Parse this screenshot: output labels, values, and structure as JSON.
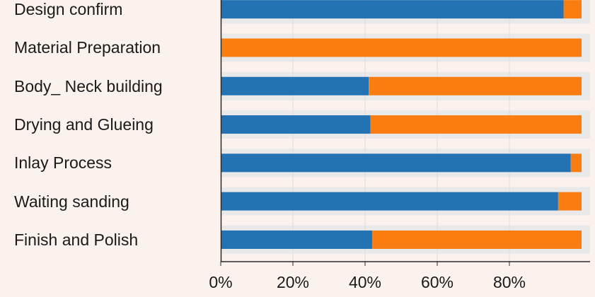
{
  "chart_data": {
    "type": "bar",
    "orientation": "horizontal",
    "stacked": "percent",
    "categories": [
      "Design confirm",
      "Material Preparation",
      "Body_ Neck building",
      "Drying and Glueing",
      "Inlay Process",
      "Waiting sanding",
      "Finish and Polish"
    ],
    "series": [
      {
        "color": "#2372b4",
        "values": [
          95,
          0,
          41,
          41.5,
          97,
          93.5,
          42
        ]
      },
      {
        "color": "#f97d10",
        "values": [
          5,
          100,
          59,
          58.5,
          3,
          6.5,
          58
        ]
      }
    ],
    "xlim": [
      0,
      100
    ],
    "x_ticks": [
      "0%",
      "20%",
      "40%",
      "60%",
      "80%"
    ],
    "x_tick_values": [
      0,
      20,
      40,
      60,
      80
    ],
    "grid": true,
    "title": "",
    "xlabel": "",
    "ylabel": ""
  }
}
